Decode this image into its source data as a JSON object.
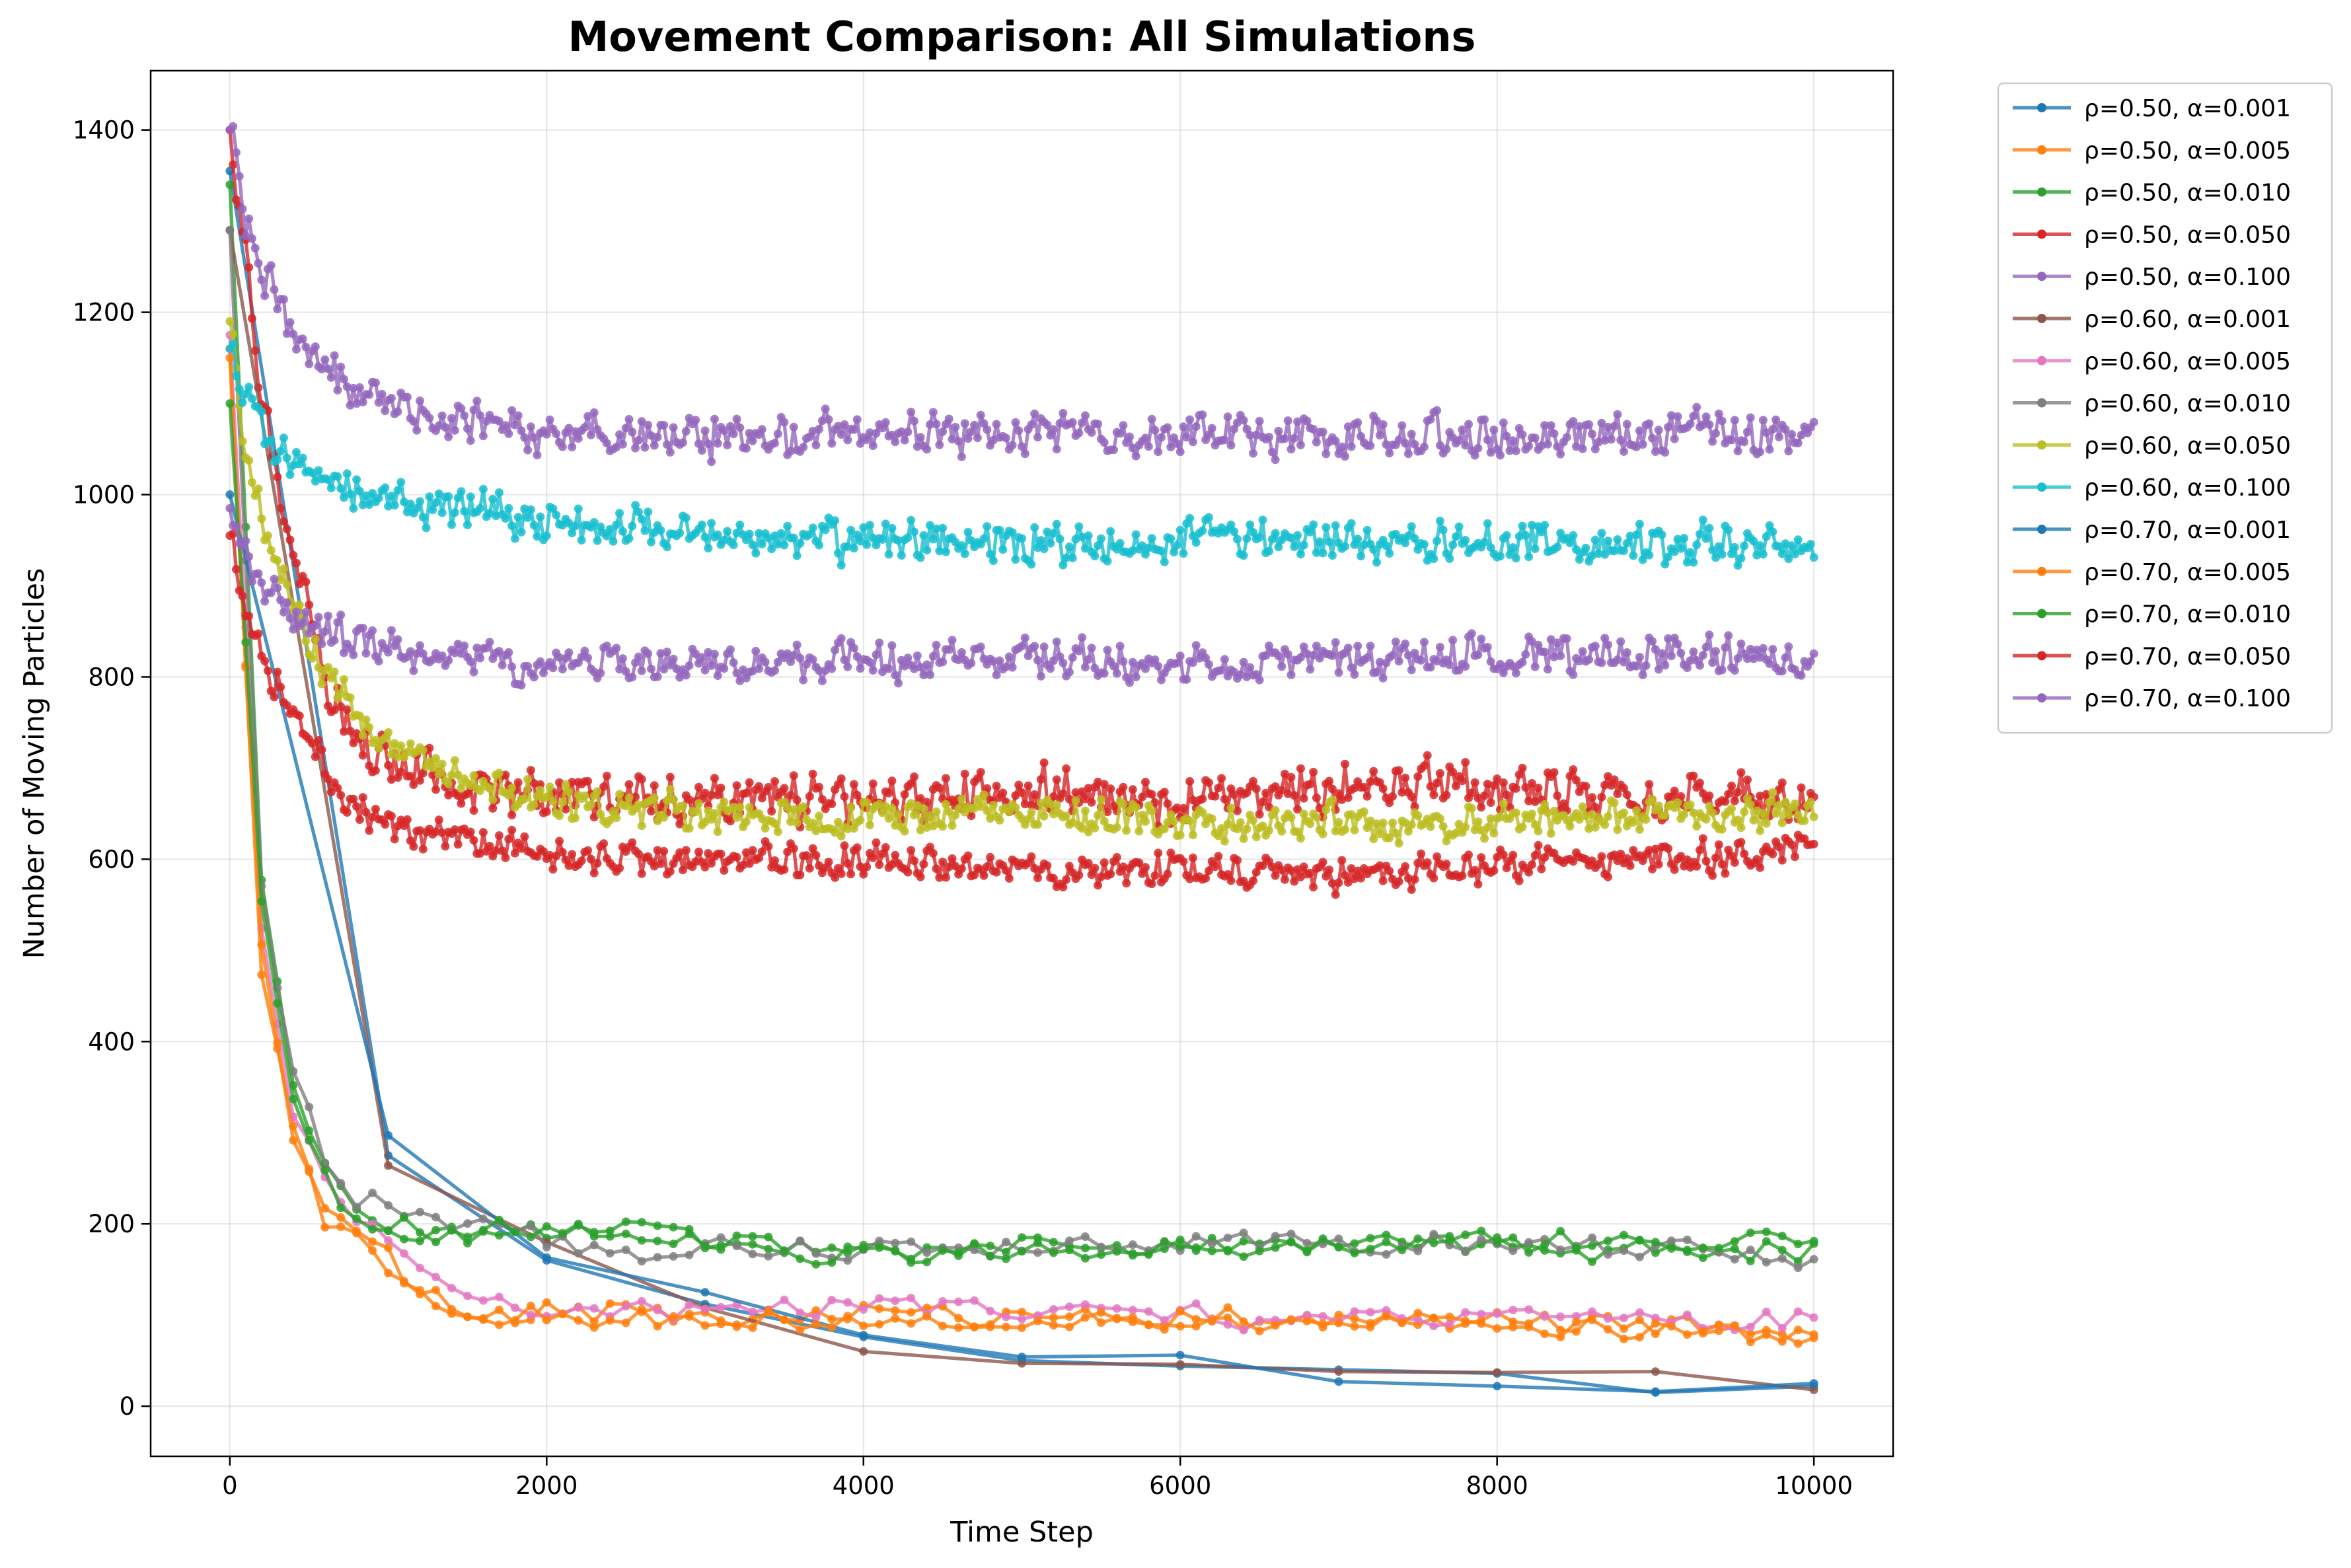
{
  "chart_data": {
    "type": "line",
    "title": "Movement Comparison: All Simulations",
    "xlabel": "Time Step",
    "ylabel": "Number of Moving Particles",
    "xlim": [
      -500,
      10500
    ],
    "ylim": [
      -55,
      1465
    ],
    "xticks": [
      0,
      2000,
      4000,
      6000,
      8000,
      10000
    ],
    "xtick_labels": [
      "0",
      "2000",
      "4000",
      "6000",
      "8000",
      "10000"
    ],
    "yticks": [
      0,
      200,
      400,
      600,
      800,
      1000,
      1200,
      1400
    ],
    "ytick_labels": [
      "0",
      "200",
      "400",
      "600",
      "800",
      "1000",
      "1200",
      "1400"
    ],
    "grid": true,
    "legend_position": "outside upper-right",
    "series": [
      {
        "name": "ρ=0.50, α=0.001",
        "color": "#1f77b4",
        "sampling": "sparse",
        "x": [
          0,
          1000,
          2000,
          3000,
          4000,
          5000,
          6000,
          7000,
          8000,
          9000,
          10000
        ],
        "y": [
          1355,
          275,
          160,
          112,
          76,
          50,
          44,
          40,
          36,
          15,
          22
        ]
      },
      {
        "name": "ρ=0.50, α=0.005",
        "color": "#ff7f0e",
        "sampling": "medium",
        "anchors": [
          [
            0,
            1160
          ],
          [
            200,
            488
          ],
          [
            400,
            320
          ],
          [
            600,
            205
          ],
          [
            800,
            183
          ],
          [
            1000,
            160
          ],
          [
            1200,
            125
          ],
          [
            1600,
            92
          ],
          [
            2000,
            105
          ],
          [
            3000,
            100
          ],
          [
            4000,
            102
          ],
          [
            6000,
            95
          ],
          [
            8000,
            95
          ],
          [
            10000,
            80
          ]
        ],
        "noise": 13
      },
      {
        "name": "ρ=0.50, α=0.010",
        "color": "#2ca02c",
        "sampling": "medium",
        "anchors": [
          [
            0,
            1340
          ],
          [
            200,
            575
          ],
          [
            400,
            350
          ],
          [
            600,
            255
          ],
          [
            800,
            215
          ],
          [
            1000,
            200
          ],
          [
            1500,
            185
          ],
          [
            2000,
            185
          ],
          [
            2500,
            190
          ],
          [
            3000,
            180
          ],
          [
            4000,
            175
          ],
          [
            6000,
            178
          ],
          [
            8000,
            175
          ],
          [
            10000,
            170
          ]
        ],
        "noise": 14
      },
      {
        "name": "ρ=0.50, α=0.050",
        "color": "#d62728",
        "sampling": "dense",
        "anchors": [
          [
            0,
            1400
          ],
          [
            100,
            1260
          ],
          [
            200,
            1100
          ],
          [
            400,
            940
          ],
          [
            600,
            800
          ],
          [
            800,
            730
          ],
          [
            1000,
            705
          ],
          [
            1500,
            680
          ],
          [
            2000,
            670
          ],
          [
            3000,
            665
          ],
          [
            4000,
            665
          ],
          [
            5000,
            675
          ],
          [
            6000,
            665
          ],
          [
            7000,
            680
          ],
          [
            8000,
            680
          ],
          [
            9000,
            670
          ],
          [
            10000,
            670
          ]
        ],
        "noise": 27
      },
      {
        "name": "ρ=0.50, α=0.100",
        "color": "#9467bd",
        "sampling": "dense",
        "anchors": [
          [
            0,
            1400
          ],
          [
            100,
            1300
          ],
          [
            200,
            1240
          ],
          [
            400,
            1180
          ],
          [
            600,
            1145
          ],
          [
            800,
            1115
          ],
          [
            1000,
            1095
          ],
          [
            1500,
            1080
          ],
          [
            2000,
            1068
          ],
          [
            3000,
            1065
          ],
          [
            4000,
            1065
          ],
          [
            5000,
            1065
          ],
          [
            6000,
            1065
          ],
          [
            8000,
            1065
          ],
          [
            10000,
            1065
          ]
        ],
        "noise": 24
      },
      {
        "name": "ρ=0.60, α=0.001",
        "color": "#8c564b",
        "sampling": "sparse",
        "x": [
          0,
          1000,
          2000,
          3000,
          4000,
          5000,
          6000,
          7000,
          8000,
          9000,
          10000
        ],
        "y": [
          1290,
          264,
          180,
          108,
          60,
          47,
          46,
          38,
          37,
          38,
          18
        ]
      },
      {
        "name": "ρ=0.60, α=0.005",
        "color": "#e377c2",
        "sampling": "medium",
        "anchors": [
          [
            0,
            1175
          ],
          [
            200,
            520
          ],
          [
            400,
            320
          ],
          [
            600,
            250
          ],
          [
            800,
            200
          ],
          [
            1000,
            185
          ],
          [
            1200,
            160
          ],
          [
            1600,
            105
          ],
          [
            2000,
            108
          ],
          [
            3000,
            100
          ],
          [
            4000,
            115
          ],
          [
            6000,
            98
          ],
          [
            8000,
            97
          ],
          [
            10000,
            95
          ]
        ],
        "noise": 13
      },
      {
        "name": "ρ=0.60, α=0.010",
        "color": "#7f7f7f",
        "sampling": "medium",
        "anchors": [
          [
            0,
            1290
          ],
          [
            200,
            560
          ],
          [
            400,
            360
          ],
          [
            600,
            280
          ],
          [
            800,
            220
          ],
          [
            1000,
            225
          ],
          [
            1500,
            195
          ],
          [
            2000,
            180
          ],
          [
            2500,
            165
          ],
          [
            3000,
            175
          ],
          [
            4000,
            172
          ],
          [
            6000,
            178
          ],
          [
            8000,
            180
          ],
          [
            10000,
            165
          ]
        ],
        "noise": 14
      },
      {
        "name": "ρ=0.60, α=0.050",
        "color": "#bcbd22",
        "sampling": "dense",
        "anchors": [
          [
            0,
            1190
          ],
          [
            100,
            1040
          ],
          [
            200,
            980
          ],
          [
            400,
            880
          ],
          [
            600,
            800
          ],
          [
            800,
            760
          ],
          [
            1000,
            730
          ],
          [
            1500,
            690
          ],
          [
            2000,
            665
          ],
          [
            3000,
            650
          ],
          [
            4000,
            645
          ],
          [
            5000,
            655
          ],
          [
            6000,
            640
          ],
          [
            7000,
            640
          ],
          [
            8000,
            640
          ],
          [
            9000,
            650
          ],
          [
            10000,
            650
          ]
        ],
        "noise": 20
      },
      {
        "name": "ρ=0.60, α=0.100",
        "color": "#17becf",
        "sampling": "dense",
        "anchors": [
          [
            0,
            1160
          ],
          [
            100,
            1100
          ],
          [
            200,
            1070
          ],
          [
            400,
            1040
          ],
          [
            600,
            1020
          ],
          [
            800,
            1005
          ],
          [
            1000,
            995
          ],
          [
            1500,
            985
          ],
          [
            2000,
            970
          ],
          [
            3000,
            955
          ],
          [
            4000,
            950
          ],
          [
            5000,
            945
          ],
          [
            6000,
            950
          ],
          [
            8000,
            945
          ],
          [
            10000,
            945
          ]
        ],
        "noise": 24
      },
      {
        "name": "ρ=0.70, α=0.001",
        "color": "#1f77b4",
        "sampling": "sparse",
        "x": [
          0,
          1000,
          2000,
          3000,
          4000,
          5000,
          6000,
          7000,
          8000,
          9000,
          10000
        ],
        "y": [
          1000,
          297,
          163,
          125,
          78,
          54,
          56,
          27,
          22,
          16,
          25
        ]
      },
      {
        "name": "ρ=0.70, α=0.005",
        "color": "#ff7f0e",
        "sampling": "medium",
        "anchors": [
          [
            0,
            1150
          ],
          [
            200,
            500
          ],
          [
            400,
            300
          ],
          [
            600,
            210
          ],
          [
            800,
            190
          ],
          [
            1000,
            165
          ],
          [
            1200,
            120
          ],
          [
            1600,
            95
          ],
          [
            2000,
            100
          ],
          [
            3000,
            95
          ],
          [
            4000,
            95
          ],
          [
            6000,
            95
          ],
          [
            8000,
            95
          ],
          [
            10000,
            72
          ]
        ],
        "noise": 13
      },
      {
        "name": "ρ=0.70, α=0.010",
        "color": "#2ca02c",
        "sampling": "medium",
        "anchors": [
          [
            0,
            1100
          ],
          [
            200,
            560
          ],
          [
            400,
            340
          ],
          [
            600,
            250
          ],
          [
            800,
            205
          ],
          [
            1000,
            195
          ],
          [
            1500,
            190
          ],
          [
            2000,
            190
          ],
          [
            2500,
            195
          ],
          [
            3000,
            180
          ],
          [
            4000,
            170
          ],
          [
            5000,
            160
          ],
          [
            6000,
            175
          ],
          [
            7000,
            175
          ],
          [
            8000,
            180
          ],
          [
            9000,
            180
          ],
          [
            10000,
            185
          ]
        ],
        "noise": 14
      },
      {
        "name": "ρ=0.70, α=0.050",
        "color": "#d62728",
        "sampling": "dense",
        "anchors": [
          [
            0,
            955
          ],
          [
            100,
            870
          ],
          [
            200,
            820
          ],
          [
            400,
            770
          ],
          [
            600,
            700
          ],
          [
            800,
            660
          ],
          [
            1000,
            635
          ],
          [
            1500,
            620
          ],
          [
            2000,
            605
          ],
          [
            3000,
            600
          ],
          [
            4000,
            600
          ],
          [
            5000,
            585
          ],
          [
            6000,
            590
          ],
          [
            7000,
            585
          ],
          [
            8000,
            595
          ],
          [
            9000,
            600
          ],
          [
            10000,
            610
          ]
        ],
        "noise": 19
      },
      {
        "name": "ρ=0.70, α=0.100",
        "color": "#9467bd",
        "sampling": "dense",
        "anchors": [
          [
            0,
            985
          ],
          [
            100,
            925
          ],
          [
            200,
            900
          ],
          [
            400,
            870
          ],
          [
            600,
            850
          ],
          [
            800,
            835
          ],
          [
            1000,
            830
          ],
          [
            1500,
            820
          ],
          [
            2000,
            815
          ],
          [
            3000,
            815
          ],
          [
            4000,
            820
          ],
          [
            5000,
            820
          ],
          [
            6000,
            815
          ],
          [
            8000,
            825
          ],
          [
            10000,
            820
          ]
        ],
        "noise": 22
      }
    ]
  }
}
